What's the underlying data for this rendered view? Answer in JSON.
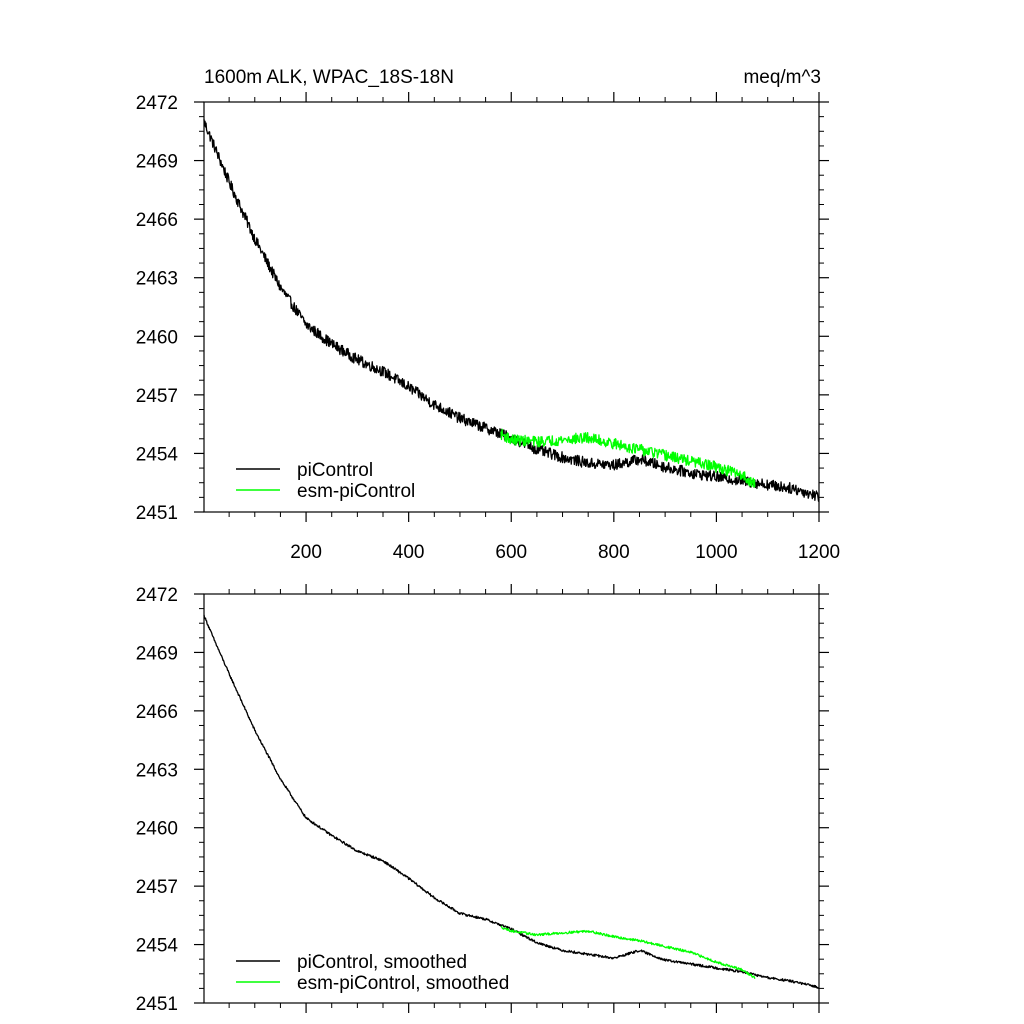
{
  "chart_data": [
    {
      "type": "line",
      "title": "1600m ALK, WPAC_18S-18N",
      "units": "meq/m^3",
      "xlim": [
        1,
        1200
      ],
      "ylim": [
        2451,
        2472
      ],
      "xticks": [
        200,
        400,
        600,
        800,
        1000,
        1200
      ],
      "yticks": [
        2451,
        2454,
        2457,
        2460,
        2463,
        2466,
        2469,
        2472
      ],
      "legend_position": "bottom-left",
      "series": [
        {
          "name": "piControl",
          "color": "#000000",
          "noise": 0.28,
          "x": [
            1,
            20,
            50,
            100,
            150,
            200,
            250,
            300,
            350,
            400,
            450,
            500,
            550,
            600,
            650,
            700,
            750,
            800,
            850,
            900,
            950,
            1000,
            1050,
            1100,
            1150,
            1200
          ],
          "y": [
            2471.0,
            2469.8,
            2467.9,
            2465.0,
            2462.5,
            2460.6,
            2459.6,
            2458.8,
            2458.2,
            2457.4,
            2456.5,
            2455.8,
            2455.3,
            2454.8,
            2454.2,
            2453.8,
            2453.5,
            2453.4,
            2453.7,
            2453.3,
            2453.0,
            2452.8,
            2452.6,
            2452.4,
            2452.2,
            2451.8
          ]
        },
        {
          "name": "esm-piControl",
          "color": "#00ff00",
          "noise": 0.28,
          "x": [
            580,
            600,
            650,
            700,
            750,
            800,
            850,
            900,
            950,
            1000,
            1050,
            1075
          ],
          "y": [
            2455.0,
            2454.7,
            2454.6,
            2454.7,
            2454.8,
            2454.5,
            2454.2,
            2453.9,
            2453.6,
            2453.3,
            2452.9,
            2452.4
          ]
        }
      ]
    },
    {
      "type": "line",
      "title": "",
      "units": "",
      "xlim": [
        1,
        1200
      ],
      "ylim": [
        2451,
        2472
      ],
      "xticks": [
        200,
        400,
        600,
        800,
        1000,
        1200
      ],
      "yticks": [
        2451,
        2454,
        2457,
        2460,
        2463,
        2466,
        2469,
        2472
      ],
      "legend_position": "bottom-left",
      "series": [
        {
          "name": "piControl, smoothed",
          "color": "#000000",
          "noise": 0.06,
          "x": [
            1,
            20,
            50,
            100,
            150,
            200,
            250,
            300,
            350,
            400,
            450,
            500,
            550,
            600,
            650,
            700,
            750,
            800,
            850,
            900,
            950,
            1000,
            1050,
            1100,
            1150,
            1200
          ],
          "y": [
            2470.9,
            2469.7,
            2467.9,
            2465.0,
            2462.5,
            2460.5,
            2459.6,
            2458.8,
            2458.3,
            2457.4,
            2456.4,
            2455.6,
            2455.3,
            2454.8,
            2454.1,
            2453.7,
            2453.5,
            2453.3,
            2453.7,
            2453.2,
            2453.0,
            2452.8,
            2452.6,
            2452.3,
            2452.1,
            2451.8
          ]
        },
        {
          "name": "esm-piControl, smoothed",
          "color": "#00ff00",
          "noise": 0.06,
          "x": [
            580,
            600,
            650,
            700,
            750,
            800,
            850,
            900,
            950,
            1000,
            1050,
            1075
          ],
          "y": [
            2454.9,
            2454.7,
            2454.5,
            2454.6,
            2454.7,
            2454.4,
            2454.2,
            2453.9,
            2453.6,
            2453.1,
            2452.7,
            2452.3
          ]
        }
      ]
    }
  ]
}
